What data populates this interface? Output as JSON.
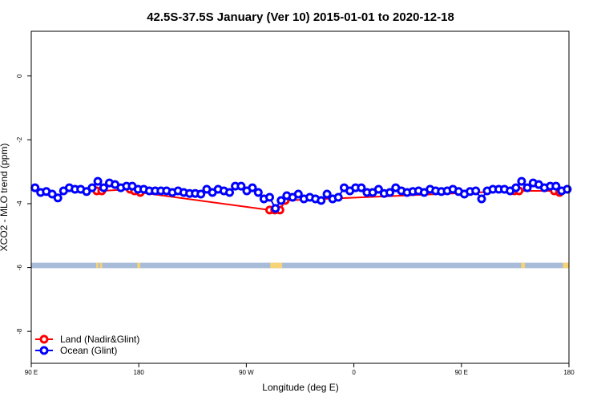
{
  "chart_data": {
    "type": "scatter",
    "title": "42.5S-37.5S January (Ver 10)   2015-01-01 to 2020-12-18",
    "xlabel": "Longitude (deg E)",
    "ylabel": "XCO2 - MLO trend (ppm)",
    "xlim": [
      90,
      450
    ],
    "ylim": [
      -9,
      1.4
    ],
    "x_ticks": [
      {
        "value": 90,
        "label": "90 E"
      },
      {
        "value": 162,
        "label": "180"
      },
      {
        "value": 234,
        "label": "90 W"
      },
      {
        "value": 306,
        "label": "0"
      },
      {
        "value": 378,
        "label": "90 E"
      },
      {
        "value": 450,
        "label": "180"
      }
    ],
    "y_ticks": [
      0,
      -2,
      -4,
      -6,
      -8
    ],
    "grid": false,
    "legend_position": "bottom-left",
    "series": [
      {
        "name": "Land (Nadir&Glint)",
        "color": "#ff0000",
        "connect": true,
        "points": [
          [
            133.9,
            -3.6
          ],
          [
            137.2,
            -3.6
          ],
          [
            156.2,
            -3.55
          ],
          [
            159.1,
            -3.6
          ],
          [
            163.0,
            -3.65
          ],
          [
            249.6,
            -4.2
          ],
          [
            253.0,
            -4.2
          ],
          [
            256.5,
            -4.2
          ],
          [
            260.0,
            -3.9
          ],
          [
            413.4,
            -3.6
          ],
          [
            416.6,
            -3.6
          ],
          [
            440.2,
            -3.6
          ],
          [
            443.7,
            -3.65
          ]
        ]
      },
      {
        "name": "Ocean (Glint)",
        "color": "#0000ff",
        "connect": true,
        "points": [
          [
            92.5,
            -3.5
          ],
          [
            96.3,
            -3.65
          ],
          [
            100.1,
            -3.62
          ],
          [
            104.0,
            -3.7
          ],
          [
            107.8,
            -3.82
          ],
          [
            111.6,
            -3.6
          ],
          [
            115.5,
            -3.5
          ],
          [
            119.3,
            -3.55
          ],
          [
            123.1,
            -3.55
          ],
          [
            127.0,
            -3.62
          ],
          [
            130.8,
            -3.5
          ],
          [
            134.6,
            -3.3
          ],
          [
            138.5,
            -3.5
          ],
          [
            142.3,
            -3.35
          ],
          [
            146.1,
            -3.4
          ],
          [
            150.0,
            -3.5
          ],
          [
            153.8,
            -3.45
          ],
          [
            157.6,
            -3.45
          ],
          [
            161.5,
            -3.55
          ],
          [
            165.3,
            -3.55
          ],
          [
            169.1,
            -3.6
          ],
          [
            173.0,
            -3.6
          ],
          [
            176.8,
            -3.6
          ],
          [
            180.6,
            -3.6
          ],
          [
            184.5,
            -3.65
          ],
          [
            188.3,
            -3.6
          ],
          [
            192.1,
            -3.65
          ],
          [
            196.0,
            -3.68
          ],
          [
            199.8,
            -3.68
          ],
          [
            203.6,
            -3.7
          ],
          [
            207.5,
            -3.55
          ],
          [
            211.3,
            -3.65
          ],
          [
            215.1,
            -3.55
          ],
          [
            219.0,
            -3.6
          ],
          [
            222.8,
            -3.65
          ],
          [
            226.6,
            -3.45
          ],
          [
            230.5,
            -3.45
          ],
          [
            234.3,
            -3.6
          ],
          [
            238.1,
            -3.5
          ],
          [
            242.0,
            -3.65
          ],
          [
            245.8,
            -3.85
          ],
          [
            249.6,
            -3.8
          ],
          [
            253.5,
            -4.15
          ],
          [
            257.3,
            -3.9
          ],
          [
            261.1,
            -3.75
          ],
          [
            265.0,
            -3.8
          ],
          [
            268.8,
            -3.7
          ],
          [
            272.6,
            -3.85
          ],
          [
            276.5,
            -3.8
          ],
          [
            280.3,
            -3.85
          ],
          [
            284.1,
            -3.9
          ],
          [
            288.0,
            -3.7
          ],
          [
            291.8,
            -3.85
          ],
          [
            295.6,
            -3.8
          ],
          [
            299.5,
            -3.5
          ],
          [
            303.3,
            -3.6
          ],
          [
            307.1,
            -3.5
          ],
          [
            311.0,
            -3.5
          ],
          [
            314.8,
            -3.65
          ],
          [
            318.6,
            -3.65
          ],
          [
            322.5,
            -3.55
          ],
          [
            326.3,
            -3.68
          ],
          [
            330.1,
            -3.65
          ],
          [
            334.0,
            -3.5
          ],
          [
            337.8,
            -3.6
          ],
          [
            341.6,
            -3.65
          ],
          [
            345.5,
            -3.62
          ],
          [
            349.3,
            -3.6
          ],
          [
            353.1,
            -3.65
          ],
          [
            357.0,
            -3.55
          ],
          [
            360.8,
            -3.6
          ],
          [
            364.6,
            -3.62
          ],
          [
            368.5,
            -3.6
          ],
          [
            372.3,
            -3.55
          ],
          [
            376.1,
            -3.62
          ],
          [
            380.0,
            -3.7
          ],
          [
            383.8,
            -3.62
          ],
          [
            387.6,
            -3.6
          ],
          [
            391.5,
            -3.85
          ],
          [
            395.3,
            -3.6
          ],
          [
            399.1,
            -3.55
          ],
          [
            403.0,
            -3.55
          ],
          [
            406.8,
            -3.55
          ],
          [
            410.6,
            -3.6
          ],
          [
            414.5,
            -3.5
          ],
          [
            418.3,
            -3.3
          ],
          [
            422.1,
            -3.5
          ],
          [
            426.0,
            -3.35
          ],
          [
            429.8,
            -3.4
          ],
          [
            433.6,
            -3.5
          ],
          [
            437.5,
            -3.45
          ],
          [
            441.3,
            -3.45
          ],
          [
            445.1,
            -3.6
          ],
          [
            448.9,
            -3.55
          ]
        ]
      }
    ],
    "land_ocean_strip": {
      "y_range": [
        -5.85,
        -6.02
      ],
      "ocean_color": "#a8bbd8",
      "land_color": "#f5d376",
      "land_segments": [
        [
          133.5,
          135.0
        ],
        [
          136.0,
          137.5
        ],
        [
          161.0,
          163.0
        ],
        [
          250.0,
          258.0
        ],
        [
          418.0,
          420.5
        ],
        [
          446.0,
          450.0
        ]
      ]
    }
  }
}
